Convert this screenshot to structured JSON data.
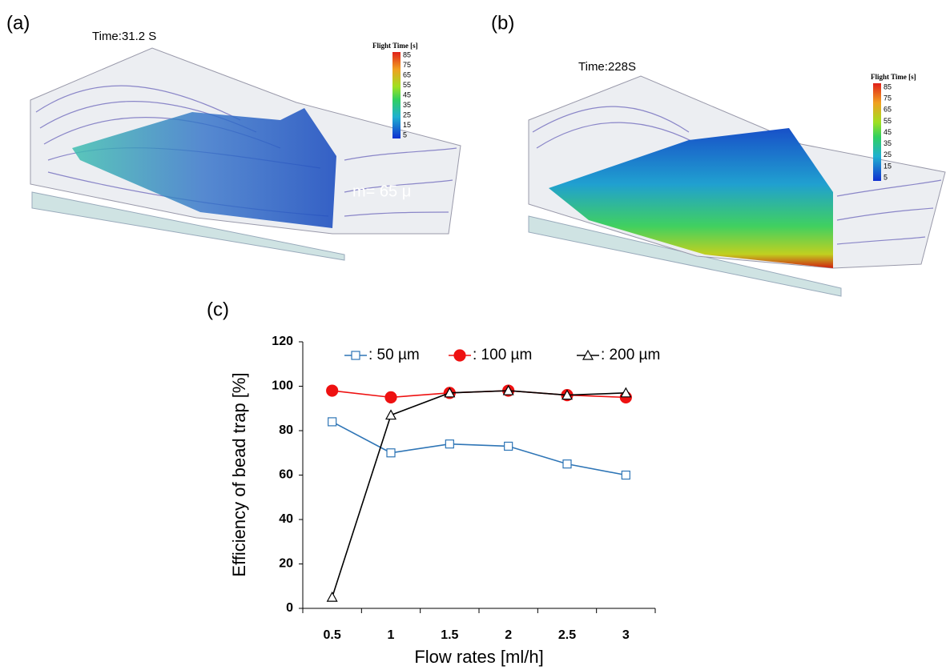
{
  "panels": [
    {
      "label": "(a)",
      "time": "Time:31.2 S",
      "annotation": "m= 65 μ",
      "colorbar_title": "Flight Time [s]",
      "colorbar_ticks": [
        85,
        75,
        65,
        55,
        45,
        35,
        25,
        15,
        5
      ]
    },
    {
      "label": "(b)",
      "time": "Time:228S",
      "colorbar_title": "Flight Time [s]",
      "colorbar_ticks": [
        85,
        75,
        65,
        55,
        45,
        35,
        25,
        15,
        5
      ]
    }
  ],
  "chart_data": {
    "type": "line",
    "label": "(c)",
    "x_label": "Flow rates [ml/h]",
    "y_label": "Efficiency of bead trap [%]",
    "categories": [
      "0.5",
      "1",
      "1.5",
      "2",
      "2.5",
      "3"
    ],
    "series": [
      {
        "name": ": 50 µm",
        "color": "#2e75b6",
        "marker": "square",
        "marker_fill": "open",
        "values": [
          84,
          70,
          74,
          73,
          65,
          60
        ]
      },
      {
        "name": ": 100 µm",
        "color": "#ee1111",
        "marker": "circle",
        "marker_fill": "filled",
        "values": [
          98,
          95,
          97,
          98,
          96,
          95
        ]
      },
      {
        "name": ": 200 µm",
        "color": "#000000",
        "marker": "triangle",
        "marker_fill": "open",
        "values": [
          5,
          87,
          97,
          98,
          96,
          97
        ]
      }
    ],
    "ylim": [
      0,
      120
    ],
    "yticks": [
      0,
      20,
      40,
      60,
      80,
      100,
      120
    ],
    "grid": false,
    "legend": "top"
  }
}
